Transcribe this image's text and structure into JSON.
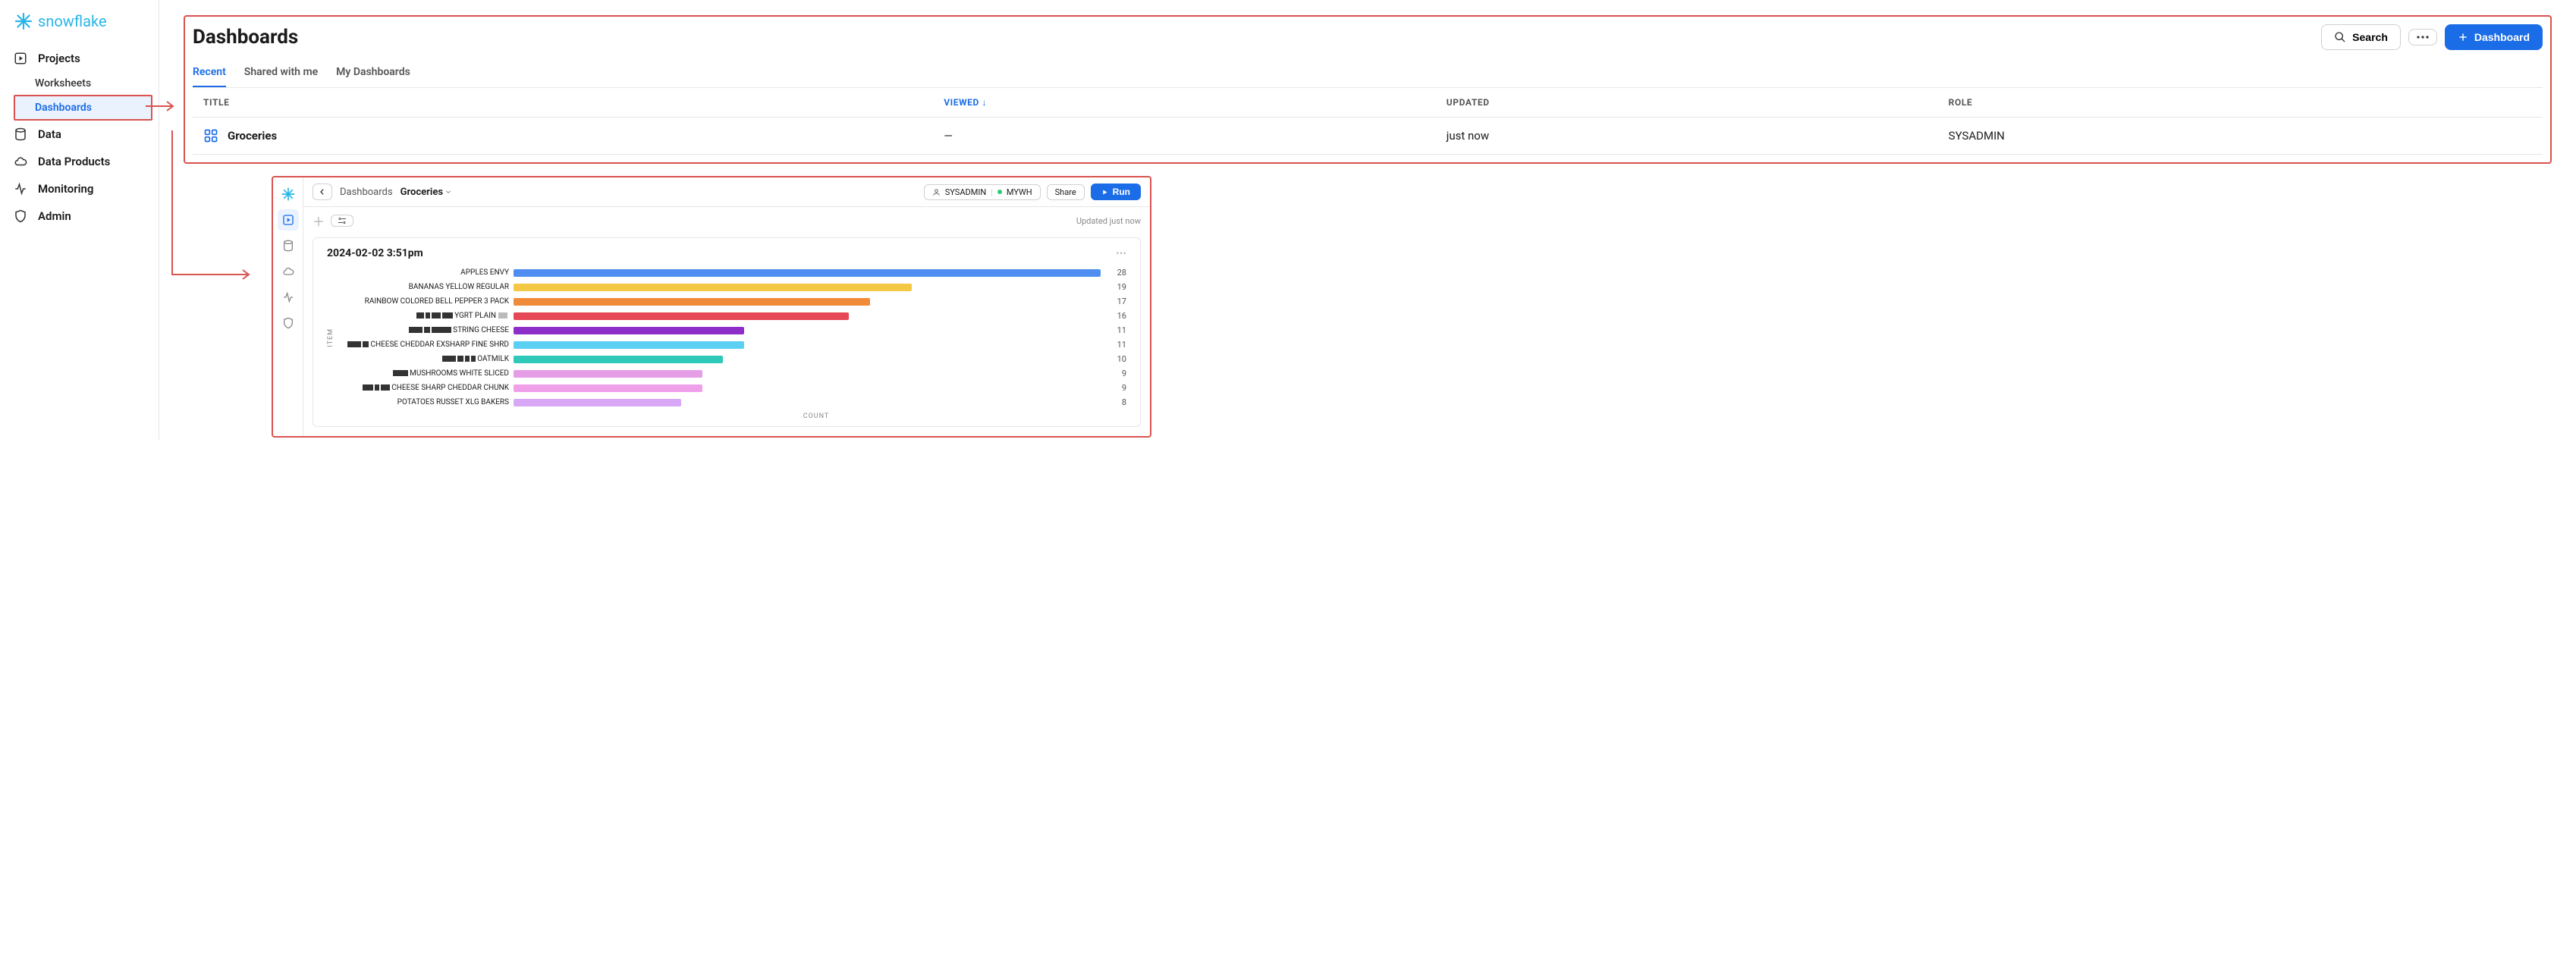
{
  "brand": {
    "name": "snowflake",
    "color": "#29b5e8"
  },
  "sidebar": {
    "items": [
      {
        "label": "Projects",
        "sub": [
          {
            "label": "Worksheets"
          },
          {
            "label": "Dashboards",
            "active": true
          }
        ]
      },
      {
        "label": "Data"
      },
      {
        "label": "Data Products"
      },
      {
        "label": "Monitoring"
      },
      {
        "label": "Admin"
      }
    ]
  },
  "page": {
    "title": "Dashboards",
    "search_label": "Search",
    "new_button": "Dashboard"
  },
  "tabs": [
    {
      "label": "Recent",
      "active": true
    },
    {
      "label": "Shared with me"
    },
    {
      "label": "My Dashboards"
    }
  ],
  "table": {
    "columns": {
      "title": "TITLE",
      "viewed": "VIEWED",
      "updated": "UPDATED",
      "role": "ROLE"
    },
    "sort_col": "viewed",
    "rows": [
      {
        "title": "Groceries",
        "viewed": "—",
        "updated": "just now",
        "role": "SYSADMIN"
      }
    ]
  },
  "detail": {
    "breadcrumb": {
      "parent": "Dashboards",
      "current": "Groceries"
    },
    "role": "SYSADMIN",
    "warehouse": "MYWH",
    "share": "Share",
    "run": "Run",
    "updated": "Updated just now",
    "chart": {
      "title": "2024-02-02 3:51pm",
      "ylabel": "ITEM",
      "xlabel": "COUNT",
      "max": 28,
      "items": [
        {
          "label": "APPLES ENVY",
          "value": 28,
          "color": "#4f8ef0",
          "redactions": []
        },
        {
          "label": "BANANAS YELLOW REGULAR",
          "value": 19,
          "color": "#f4c744",
          "redactions": []
        },
        {
          "label": "RAINBOW COLORED BELL PEPPER 3 PACK",
          "value": 17,
          "color": "#f08b3a",
          "redactions": []
        },
        {
          "label": "YGRT PLAIN",
          "value": 16,
          "color": "#e74856",
          "redactions": [
            10,
            6,
            12,
            14
          ],
          "redact_after": [
            12
          ]
        },
        {
          "label": "STRING CHEESE",
          "value": 11,
          "color": "#8e2ec9",
          "redactions": [
            18,
            8,
            26
          ]
        },
        {
          "label": "CHEESE CHEDDAR EXSHARP FINE SHRD",
          "value": 11,
          "color": "#5cd0f2",
          "redactions": [
            18,
            8
          ]
        },
        {
          "label": "OATMILK",
          "value": 10,
          "color": "#2ec9b9",
          "redactions": [
            18,
            8,
            6,
            6
          ]
        },
        {
          "label": "MUSHROOMS WHITE SLICED",
          "value": 9,
          "color": "#e59de6",
          "redactions": [
            20
          ]
        },
        {
          "label": "CHEESE SHARP CHEDDAR CHUNK",
          "value": 9,
          "color": "#f0a0e8",
          "redactions": [
            14,
            6,
            12
          ]
        },
        {
          "label": "POTATOES RUSSET XLG BAKERS",
          "value": 8,
          "color": "#d8a7f5",
          "redactions": []
        }
      ]
    }
  }
}
